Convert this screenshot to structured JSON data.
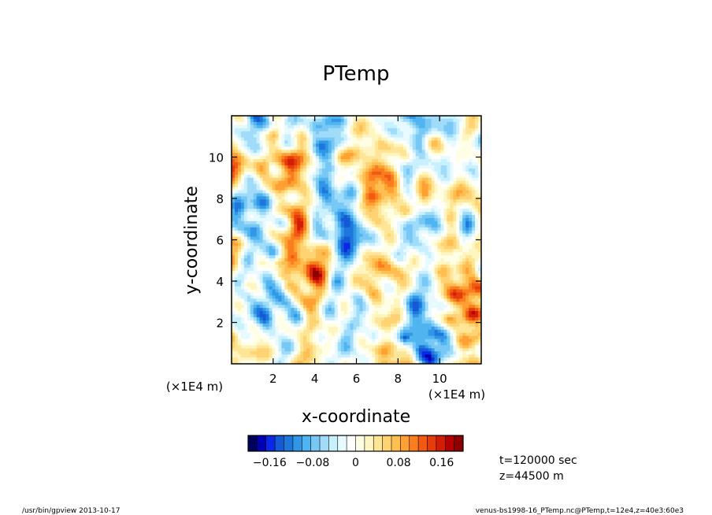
{
  "chart_data": {
    "type": "heatmap",
    "title": "PTemp",
    "xlabel": "x-coordinate",
    "ylabel": "y-coordinate",
    "x_unit_label": "(×1E4 m)",
    "y_unit_label": "(×1E4 m)",
    "xlim": [
      0,
      12
    ],
    "ylim": [
      0,
      12
    ],
    "x_ticks": [
      2,
      4,
      6,
      8,
      10
    ],
    "y_ticks": [
      2,
      4,
      6,
      8,
      10
    ],
    "colorbar": {
      "range": [
        -0.2,
        0.2
      ],
      "tick_values": [
        -0.16,
        -0.08,
        0,
        0.08,
        0.16
      ],
      "tick_labels": [
        "−0.16",
        "−0.08",
        "0",
        "0.08",
        "0.16"
      ],
      "colors": [
        "#00005a",
        "#0000b4",
        "#0a28e6",
        "#145ad7",
        "#1e78dc",
        "#3296e6",
        "#50b4f0",
        "#78c8f5",
        "#a0dcfa",
        "#c8f0ff",
        "#e6faff",
        "#ffffff",
        "#ffffe6",
        "#fff5c0",
        "#ffe696",
        "#ffd273",
        "#ffbe50",
        "#ffa032",
        "#fa7d1e",
        "#f05a14",
        "#e63c0a",
        "#d21e05",
        "#b40000",
        "#8c0000"
      ]
    },
    "annotations": [
      "t=120000 sec",
      "z=44500 m"
    ],
    "grid": false
  },
  "footer": {
    "left": "/usr/bin/gpview   2013-10-17",
    "right": "venus-bs1998-16_PTemp.nc@PTemp,t=12e4,z=40e3:60e3"
  }
}
